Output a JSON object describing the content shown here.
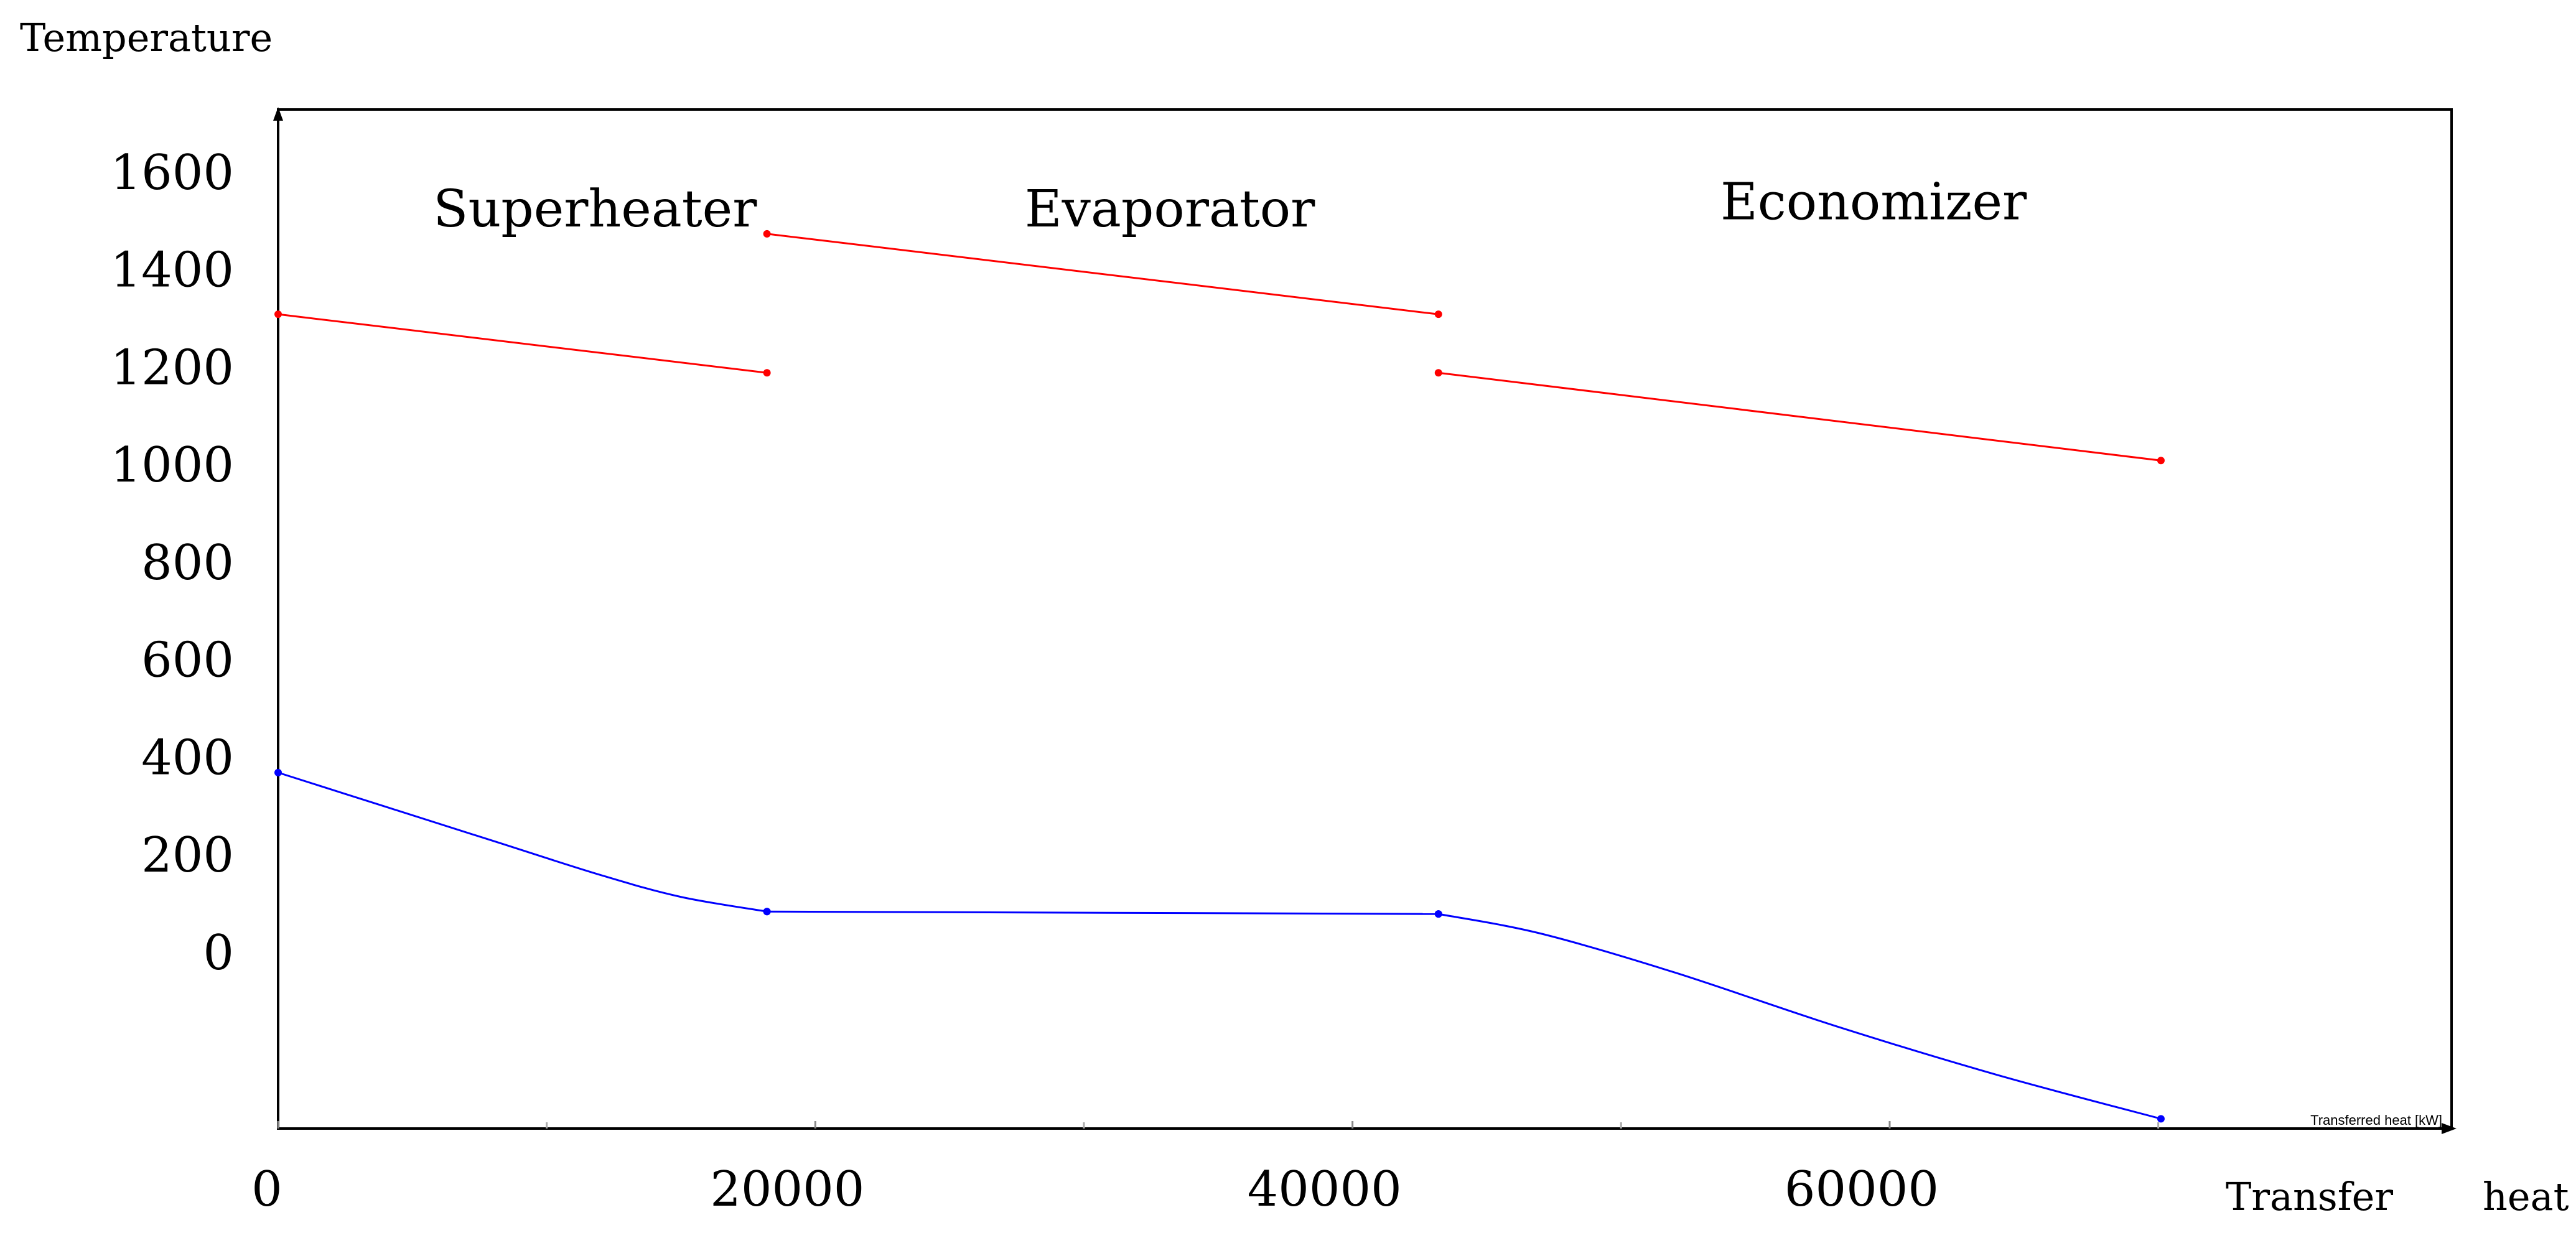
{
  "chart_data": {
    "type": "line",
    "title": "",
    "ylabel": "Temperature",
    "xlabel_words": [
      "Transfer",
      "heat"
    ],
    "inner_xlabel": "Transferred heat [kW]",
    "xlim": [
      0,
      80920
    ],
    "ylim": [
      -360,
      1730
    ],
    "grid": false,
    "x_ticks": [
      {
        "value": 0,
        "label": "0"
      },
      {
        "value": 20000,
        "label": "20000"
      },
      {
        "value": 40000,
        "label": "40000"
      },
      {
        "value": 60000,
        "label": "60000"
      }
    ],
    "minor_x_ticks": [
      10000,
      30000,
      50000,
      70000
    ],
    "y_ticks": [
      {
        "value": 0,
        "label": "0"
      },
      {
        "value": 200,
        "label": "200"
      },
      {
        "value": 400,
        "label": "400"
      },
      {
        "value": 600,
        "label": "600"
      },
      {
        "value": 800,
        "label": "800"
      },
      {
        "value": 1000,
        "label": "1000"
      },
      {
        "value": 1200,
        "label": "1200"
      },
      {
        "value": 1400,
        "label": "1400"
      },
      {
        "value": 1600,
        "label": "1600"
      }
    ],
    "zones": [
      {
        "label": "Superheater",
        "x": 11800,
        "y": 1490
      },
      {
        "label": "Evaporator",
        "x": 33200,
        "y": 1490
      },
      {
        "label": "Economizer",
        "x": 59400,
        "y": 1505
      }
    ],
    "series": [
      {
        "color": "#ff0000",
        "points": [
          [
            0,
            1310
          ],
          [
            18200,
            1190
          ]
        ]
      },
      {
        "color": "#ff0000",
        "points": [
          [
            18200,
            1475
          ],
          [
            43200,
            1310
          ]
        ]
      },
      {
        "color": "#ff0000",
        "points": [
          [
            43200,
            1190
          ],
          [
            70100,
            1010
          ]
        ]
      },
      {
        "color": "#0000ff",
        "smooth": true,
        "points": [
          [
            0,
            370
          ],
          [
            4000,
            300
          ],
          [
            8000,
            230
          ],
          [
            12000,
            160
          ],
          [
            15000,
            115
          ],
          [
            18200,
            85
          ]
        ]
      },
      {
        "color": "#0000ff",
        "points": [
          [
            18200,
            85
          ],
          [
            43200,
            80
          ]
        ]
      },
      {
        "color": "#0000ff",
        "smooth": true,
        "points": [
          [
            43200,
            80
          ],
          [
            47000,
            40
          ],
          [
            52000,
            -40
          ],
          [
            58000,
            -150
          ],
          [
            64000,
            -250
          ],
          [
            70100,
            -340
          ]
        ]
      }
    ]
  }
}
